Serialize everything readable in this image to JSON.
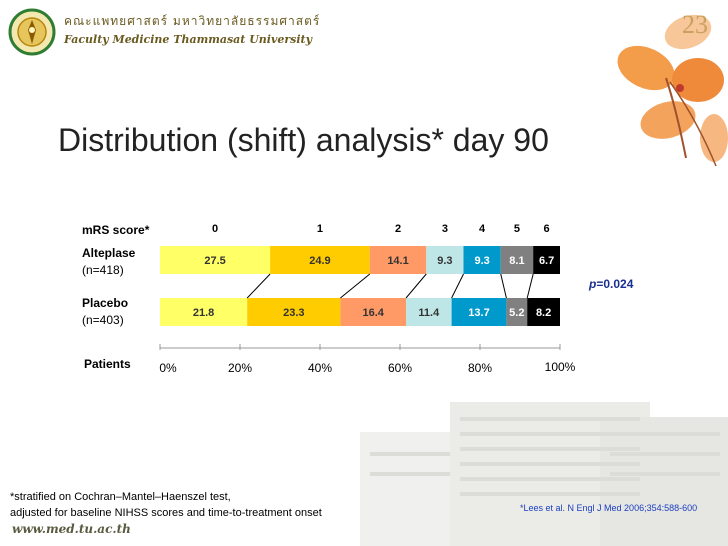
{
  "header": {
    "thai_text": "คณะแพทยศาสตร์ มหาวิทยาลัยธรรมศาสตร์",
    "english_text": "Faculty Medicine Thammasat University",
    "slide_number": "23",
    "website": "www.med.tu.ac.th"
  },
  "title": "Distribution (shift) analysis* day 90",
  "labels": {
    "mrs_score": "mRS score*",
    "patients": "Patients",
    "p_value_prefix": "p",
    "p_value_rest": "=0.024"
  },
  "rows": [
    {
      "name": "Alteplase",
      "n": "(n=418)"
    },
    {
      "name": "Placebo",
      "n": "(n=403)"
    }
  ],
  "footnote": [
    "*stratified on Cochran–Mantel–Haenszel test,",
    "adjusted for baseline NIHSS scores and time-to-treatment onset"
  ],
  "reference": "*Lees et al. N Engl J Med 2006;354:588-600",
  "chart_data": {
    "type": "bar",
    "orientation": "horizontal",
    "stacked": true,
    "title": "Distribution (shift) analysis* day 90",
    "categories": [
      "Alteplase",
      "Placebo"
    ],
    "score_labels": [
      "0",
      "1",
      "2",
      "3",
      "4",
      "5",
      "6"
    ],
    "series": [
      {
        "name": "0",
        "values": [
          27.5,
          21.8
        ],
        "color": "#ffff66"
      },
      {
        "name": "1",
        "values": [
          24.9,
          23.3
        ],
        "color": "#ffcc00"
      },
      {
        "name": "2",
        "values": [
          14.1,
          16.4
        ],
        "color": "#ff9966"
      },
      {
        "name": "3",
        "values": [
          9.3,
          11.4
        ],
        "color": "#bfe6e6"
      },
      {
        "name": "4",
        "values": [
          9.3,
          13.7
        ],
        "color": "#0099cc"
      },
      {
        "name": "5",
        "values": [
          8.1,
          5.2
        ],
        "color": "#808080"
      },
      {
        "name": "6",
        "values": [
          6.7,
          8.2
        ],
        "color": "#000000"
      }
    ],
    "xlabel": "Patients",
    "x_ticks": [
      "0%",
      "20%",
      "40%",
      "60%",
      "80%",
      "100%"
    ],
    "xlim": [
      0,
      100
    ],
    "grid": false
  }
}
